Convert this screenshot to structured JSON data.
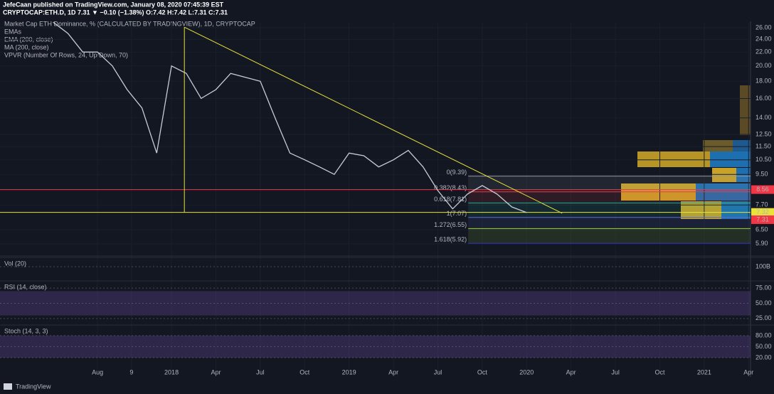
{
  "header": {
    "line1": "JefeCaan published on TradingView.com, January 08, 2020 07:45:39 EST",
    "line2": "CRYPTOCAP:ETH.D, 1D 7.31 ▼ −0.10 (−1.38%) O:7.42 H:7.42 L:7.31 C:7.31"
  },
  "chart_data": {
    "type": "line",
    "title": "Market Cap ETH Dominance, % (CALCULATED BY TRADINGVIEW), 1D, CRYPTOCAP",
    "legend_lines": [
      "EMAs",
      "EMA (200, close)",
      "MA (200, close)",
      "VPVR (Number Of Rows, 24, Up/Down, 70)"
    ],
    "color": "#c9ccd4",
    "x": [
      -3,
      -2,
      -1,
      0,
      1,
      2,
      3,
      4,
      5,
      6,
      7,
      8,
      9,
      10,
      11,
      12,
      13,
      14,
      15,
      16,
      17,
      18,
      19,
      20,
      21,
      22,
      23,
      24,
      25,
      26,
      27,
      28,
      29
    ],
    "values": [
      27,
      25,
      22,
      22,
      20,
      17,
      15,
      11,
      20,
      19,
      16,
      17,
      19,
      18.5,
      18,
      14,
      11,
      10.5,
      10,
      9.5,
      11,
      10.8,
      10,
      10.5,
      11.2,
      10,
      8.5,
      7.5,
      8.3,
      8.8,
      8.3,
      7.6,
      7.31
    ],
    "xlim": [
      -6.59,
      44.13
    ],
    "xticks": [
      {
        "value": 0,
        "label": "Aug"
      },
      {
        "value": 2.3,
        "label": "9"
      },
      {
        "value": 5,
        "label": "2018"
      },
      {
        "value": 8,
        "label": "Apr"
      },
      {
        "value": 11,
        "label": "Jul"
      },
      {
        "value": 14,
        "label": "Oct"
      },
      {
        "value": 17,
        "label": "2019"
      },
      {
        "value": 20,
        "label": "Apr"
      },
      {
        "value": 23,
        "label": "Jul"
      },
      {
        "value": 26,
        "label": "Oct"
      },
      {
        "value": 29,
        "label": "2020"
      },
      {
        "value": 32,
        "label": "Apr"
      },
      {
        "value": 35,
        "label": "Jul"
      },
      {
        "value": 38,
        "label": "Oct"
      },
      {
        "value": 41,
        "label": "2021"
      },
      {
        "value": 44,
        "label": "Apr"
      }
    ],
    "ylim": [
      5.56,
      26.9
    ],
    "log_scale": true,
    "yticks": [
      {
        "value": 26,
        "label": "26.00"
      },
      {
        "value": 24,
        "label": "24.00"
      },
      {
        "value": 22,
        "label": "22.00"
      },
      {
        "value": 20,
        "label": "20.00"
      },
      {
        "value": 18,
        "label": "18.00"
      },
      {
        "value": 16,
        "label": "16.00"
      },
      {
        "value": 14,
        "label": "14.00"
      },
      {
        "value": 12.5,
        "label": "12.50"
      },
      {
        "value": 11.5,
        "label": "11.50"
      },
      {
        "value": 10.5,
        "label": "10.50"
      },
      {
        "value": 9.5,
        "label": "9.50"
      },
      {
        "value": 7.7,
        "label": "7.70"
      },
      {
        "value": 6.5,
        "label": "6.50"
      },
      {
        "value": 5.9,
        "label": "5.90"
      }
    ],
    "price_lines": [
      {
        "value": 8.56,
        "color": "#f23645"
      },
      {
        "value": 7.32,
        "color": "#e8e23a"
      },
      {
        "value": 7.31,
        "color": "#f23645"
      }
    ],
    "trendline": {
      "x": [
        5.87,
        31.4
      ],
      "values": [
        26.1,
        7.28
      ],
      "color": "#e8e23a"
    },
    "vline": {
      "x": 5.87,
      "values": [
        26.1,
        7.32
      ],
      "color": "#e8e23a"
    },
    "fib": {
      "x_start": 25.05,
      "levels": [
        {
          "value": 9.39,
          "label": "0(9.39)",
          "color": "#9598a1"
        },
        {
          "value": 8.43,
          "label": "0.382(8.43)",
          "color": "#f23645"
        },
        {
          "value": 7.81,
          "label": "0.618(7.81)",
          "color": "#22ab94"
        },
        {
          "value": 7.07,
          "label": "1(7.07)",
          "color": "#5b6bd8"
        },
        {
          "value": 6.55,
          "label": "1.272(6.55)",
          "color": "#9bd23a"
        },
        {
          "value": 5.92,
          "label": "1.618(5.92)",
          "color": "#3333cc"
        }
      ]
    }
  },
  "indicators": [
    {
      "label": "Vol (20)",
      "ylim": [
        0,
        150000000000
      ],
      "yticks": [
        {
          "value": 100000000000,
          "label": "100B"
        }
      ]
    },
    {
      "label": "RSI (14, close)",
      "ylim": [
        15.5,
        83.3
      ],
      "yticks": [
        {
          "value": 75,
          "label": "75.00"
        },
        {
          "value": 50,
          "label": "50.00"
        },
        {
          "value": 25,
          "label": "25.00"
        }
      ],
      "band": [
        30,
        70
      ]
    },
    {
      "label": "Stoch (14, 3, 3)",
      "ylim": [
        -13,
        103
      ],
      "yticks": [
        {
          "value": 80,
          "label": "80.00"
        },
        {
          "value": 50,
          "label": "50.00"
        },
        {
          "value": 20,
          "label": "20.00"
        }
      ],
      "band": [
        20,
        80
      ]
    }
  ],
  "footer": {
    "brand": "TradingView"
  }
}
